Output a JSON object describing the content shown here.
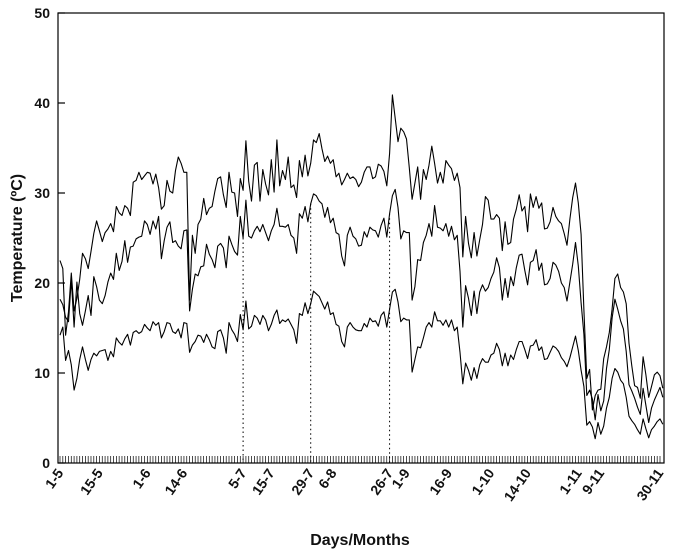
{
  "chart_data": {
    "type": "line",
    "title": "",
    "xlabel": "Days/Months",
    "ylabel": "Temperature (ºC)",
    "ylim": [
      0,
      50
    ],
    "yticks": [
      0,
      10,
      20,
      30,
      40,
      50
    ],
    "xlim": [
      "1-5",
      "30-11"
    ],
    "xtick_labels": [
      "1-5",
      "15-5",
      "1-6",
      "14-6",
      "5-7",
      "15-7",
      "29-7",
      "6-8",
      "26-7",
      "1-9",
      "16-9",
      "1-10",
      "14-10",
      "1-11",
      "9-11",
      "30-11"
    ],
    "xtick_days": [
      0,
      14,
      31,
      44,
      65,
      75,
      89,
      97,
      117,
      123,
      138,
      153,
      166,
      184,
      192,
      213
    ],
    "vertical_markers_days": [
      65,
      89,
      117
    ],
    "daily_minor_ticks": true,
    "grid": false,
    "series": [
      {
        "values": [
          22.5,
          21.6,
          14.2,
          16.8,
          21.1,
          16.9,
          18.3,
          20.4,
          23.3,
          22.7,
          21.6,
          23.5,
          25.5,
          26.9,
          25.8,
          24.6,
          25.6,
          26,
          26.6,
          25.7,
          28.5,
          27.8,
          27.5,
          28.6,
          28.3,
          27.5,
          31.2,
          31.4,
          32.3,
          31.5,
          31.9,
          32.3,
          32.2,
          31,
          32.1,
          30.6,
          28.2,
          28.6,
          31.4,
          30.2,
          30,
          32.5,
          34,
          33.3,
          32.3,
          32.3,
          18.1,
          25.3,
          23.3,
          26.5,
          27.1,
          29.4,
          27.6,
          28.3,
          28.5,
          30.2,
          31.6,
          31.8,
          29.8,
          28.4,
          32.3,
          30.1,
          30,
          27.4,
          31.6,
          30.3,
          35.8,
          31.3,
          29.1,
          33.1,
          33.4,
          29.1,
          32.6,
          31,
          29.8,
          33.7,
          30.1,
          35.9,
          30.8,
          32.5,
          31.5,
          34,
          30.6,
          30.9,
          29.5,
          33.6,
          31.8,
          34.2,
          31.9,
          33.3,
          35.9,
          35.6,
          36.6,
          34.9,
          33.5,
          34.1,
          33.3,
          33.7,
          31.8,
          32.2,
          30.9,
          31.5,
          32.2,
          31.6,
          31.8,
          31.5,
          30.7,
          31.2,
          32.3,
          32.9,
          32.9,
          31.6,
          31.8,
          33.2,
          33,
          32.4,
          30.8,
          34.4,
          40.9,
          38.3,
          35.7,
          37.2,
          36.8,
          36,
          32.8,
          29.3,
          31.1,
          32.9,
          29.3,
          32.6,
          31.5,
          33.1,
          35.2,
          33.3,
          31.1,
          32.3,
          31.1,
          33.6,
          33.1,
          32.7,
          31.4,
          32.2,
          30.6,
          22.9,
          27.4,
          24.4,
          22.8,
          25.6,
          23,
          24.8,
          26.5,
          29.6,
          29.2,
          27.1,
          27.1,
          27.6,
          27.2,
          23.6,
          26.8,
          24.3,
          24.5,
          27.1,
          28.2,
          29.8,
          28,
          28.5,
          25.7,
          29.9,
          28.4,
          29.6,
          28.3,
          28.9,
          26,
          26.1,
          26.8,
          28.4,
          27.4,
          26.9,
          26.6,
          25.5,
          24.2,
          27.1,
          29.5,
          31.1,
          28.9,
          25.4,
          17,
          9.4,
          10.4,
          5.9,
          7.5,
          8.1,
          8.2,
          11.6,
          12.9,
          14.5,
          17.1,
          20.5,
          21,
          19.5,
          19,
          17.7,
          13.3,
          10.8,
          8.6,
          8.4,
          7.2,
          11.8,
          9.8,
          7.3,
          8.5,
          9.8,
          10.1,
          9.7,
          8.3
        ]
      },
      {
        "values": [
          18.2,
          17.6,
          16.2,
          15.7,
          20.4,
          15.1,
          20.1,
          16.6,
          15.3,
          16.9,
          18.6,
          16.4,
          20.7,
          19.6,
          18.1,
          17.7,
          18.6,
          20.1,
          21.1,
          20.4,
          23.3,
          21.4,
          22.4,
          24.7,
          22.3,
          24,
          24.1,
          24.9,
          25.1,
          25.2,
          26.9,
          26.5,
          25.4,
          26.9,
          26,
          27.4,
          22.7,
          24.7,
          26.2,
          26.8,
          24.5,
          24.7,
          24.1,
          23.8,
          25.8,
          25.9,
          16.9,
          19.3,
          21,
          20.8,
          21.8,
          21.9,
          24.3,
          23.2,
          22.6,
          21.7,
          24.1,
          24.4,
          23.9,
          21.7,
          25.2,
          24.3,
          23.5,
          23.1,
          27.4,
          25,
          29.2,
          25.2,
          25,
          25.8,
          26.3,
          25.7,
          26.5,
          25.6,
          24.7,
          25.8,
          26.5,
          28.3,
          26.3,
          26.3,
          26.2,
          26.5,
          25.3,
          25,
          23.3,
          27.7,
          27.2,
          28.5,
          26.8,
          28.8,
          29.9,
          29.7,
          29.1,
          28.8,
          27.3,
          28.4,
          26.7,
          27.2,
          25.6,
          25.4,
          23,
          21.9,
          25.3,
          26.2,
          25.2,
          24.9,
          24.1,
          24.2,
          25.7,
          25.1,
          26.2,
          25.9,
          25.8,
          25.1,
          26.4,
          27.2,
          25.1,
          27.7,
          29.7,
          30.4,
          28.4,
          24.9,
          25.8,
          25.6,
          25.6,
          18.1,
          19.6,
          22.6,
          22.5,
          24.5,
          25.3,
          26.6,
          25.2,
          28.6,
          26.2,
          26.1,
          25.8,
          26.6,
          25.2,
          26.3,
          24.8,
          25.3,
          21.3,
          15.1,
          19.7,
          18.3,
          16.4,
          19.1,
          16.6,
          19,
          19.8,
          19.1,
          19.5,
          20.5,
          21.2,
          22.8,
          21.7,
          18.1,
          20.5,
          18.4,
          20.7,
          19.7,
          21.7,
          23.1,
          23.2,
          21.4,
          19.8,
          22.3,
          22.5,
          23.7,
          21.4,
          22.2,
          19.8,
          19.9,
          20.5,
          22.3,
          22,
          21.3,
          20,
          19.5,
          18,
          20.1,
          22.1,
          24.5,
          21.9,
          17.8,
          14.3,
          7.5,
          8.1,
          7.1,
          4.8,
          7.6,
          5.8,
          6.9,
          10.5,
          12.6,
          16.1,
          18.2,
          17.1,
          15.8,
          14.9,
          12.4,
          8.7,
          8,
          7.2,
          6.2,
          5.4,
          8.3,
          6.4,
          4.5,
          6.1,
          7,
          7.7,
          8.4,
          7.3
        ]
      },
      {
        "values": [
          14.2,
          15.1,
          11.4,
          12.5,
          10.9,
          8.1,
          9.4,
          11.5,
          12.9,
          11.5,
          10.3,
          11.5,
          12.2,
          11.9,
          12.4,
          12.5,
          12.6,
          11.4,
          12.4,
          11.8,
          13.9,
          13.4,
          13.1,
          13.8,
          14.3,
          13.1,
          14.5,
          14.7,
          14.4,
          14.6,
          15.4,
          15,
          14.7,
          15.7,
          15.3,
          15.6,
          13.9,
          14.6,
          15.6,
          15.5,
          14.6,
          14.4,
          14.9,
          13.9,
          15.6,
          15.5,
          12.3,
          13.1,
          13.5,
          14.2,
          14.1,
          13.4,
          14.3,
          13.7,
          12.9,
          12.7,
          14.6,
          14.8,
          13.9,
          12.2,
          15.6,
          14.8,
          14.3,
          13.5,
          16.5,
          14.8,
          18,
          14.9,
          15.2,
          16.4,
          16.1,
          15.4,
          16.4,
          15.9,
          14.7,
          15.4,
          16.4,
          17,
          15.5,
          15.9,
          15.7,
          16,
          15.4,
          14.8,
          13.3,
          16.6,
          16.4,
          17.8,
          16.6,
          17.7,
          19.1,
          18.8,
          18.5,
          17.8,
          17.1,
          17.9,
          16.5,
          16.7,
          15.4,
          15.2,
          13.5,
          12.9,
          15.1,
          15.6,
          15.1,
          14.8,
          14.7,
          14.7,
          15.5,
          15.1,
          16.1,
          15.7,
          15.8,
          15.2,
          16.4,
          16.8,
          15.1,
          17.1,
          19,
          19.3,
          17.9,
          15.7,
          16.1,
          15.9,
          15.9,
          10.1,
          11.5,
          12.9,
          12.8,
          13.9,
          15.1,
          15.6,
          15.1,
          16.8,
          15.8,
          15.8,
          15.3,
          15.9,
          15.1,
          15.9,
          14.7,
          15.1,
          12.3,
          8.8,
          11.1,
          10.3,
          9.2,
          10.6,
          9.4,
          10.9,
          11.6,
          11.2,
          11.2,
          12,
          12.2,
          13.3,
          12.6,
          10.8,
          12.2,
          10.8,
          12,
          11.5,
          12.6,
          13.5,
          13.5,
          12.6,
          11.6,
          13,
          13.1,
          13.7,
          12.5,
          12.9,
          11.5,
          11.6,
          12.3,
          13,
          12.8,
          12.4,
          11.7,
          11.3,
          10.7,
          11.7,
          12.9,
          14.1,
          12.5,
          10.3,
          8.5,
          4.2,
          4.6,
          4,
          2.7,
          4.5,
          3.2,
          4.1,
          6.1,
          7.3,
          9.4,
          10.5,
          10.1,
          9.2,
          8.8,
          7.3,
          5.2,
          4.7,
          4.3,
          3.7,
          3.2,
          4.9,
          3.8,
          2.8,
          3.7,
          4.1,
          4.6,
          4.9,
          4.3
        ]
      }
    ]
  }
}
